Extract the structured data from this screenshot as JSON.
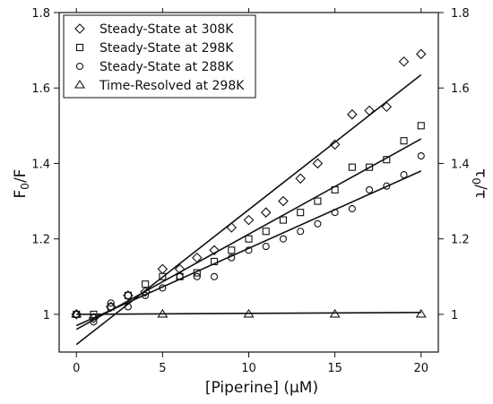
{
  "chart_data": {
    "type": "scatter",
    "xlabel": "[Piperine] (μM)",
    "ylabel": "F0/F",
    "y2label": "τ0/τ",
    "xlim": [
      -1,
      21
    ],
    "ylim": [
      0.9,
      1.8
    ],
    "y2lim": [
      0.9,
      1.8
    ],
    "x_ticks": [
      0,
      5,
      10,
      15,
      20
    ],
    "y_ticks": [
      1,
      1.2,
      1.4,
      1.6,
      1.8
    ],
    "y2_ticks": [
      1,
      1.2,
      1.4,
      1.6,
      1.8
    ],
    "legend_position": "top-left",
    "grid": false,
    "series": [
      {
        "name": "Steady-State at 308K",
        "marker": "diamond",
        "x": [
          0,
          1,
          2,
          3,
          4,
          5,
          6,
          7,
          8,
          9,
          10,
          11,
          12,
          13,
          14,
          15,
          16,
          17,
          18,
          19,
          20
        ],
        "y": [
          1.0,
          0.99,
          1.02,
          1.05,
          1.06,
          1.12,
          1.12,
          1.15,
          1.17,
          1.23,
          1.25,
          1.27,
          1.3,
          1.36,
          1.4,
          1.45,
          1.53,
          1.54,
          1.55,
          1.67,
          1.69
        ],
        "fit": [
          0.92,
          1.635
        ]
      },
      {
        "name": "Steady-State at 298K",
        "marker": "square",
        "x": [
          0,
          1,
          2,
          3,
          4,
          5,
          6,
          7,
          8,
          9,
          10,
          11,
          12,
          13,
          14,
          15,
          16,
          17,
          18,
          19,
          20
        ],
        "y": [
          1.0,
          1.0,
          1.02,
          1.05,
          1.08,
          1.1,
          1.1,
          1.11,
          1.14,
          1.17,
          1.2,
          1.22,
          1.25,
          1.27,
          1.3,
          1.33,
          1.39,
          1.39,
          1.41,
          1.46,
          1.5
        ],
        "fit": [
          0.96,
          1.465
        ]
      },
      {
        "name": "Steady-State at 288K",
        "marker": "circle",
        "x": [
          0,
          1,
          2,
          3,
          4,
          5,
          6,
          7,
          8,
          9,
          10,
          11,
          12,
          13,
          14,
          15,
          16,
          17,
          18,
          19,
          20
        ],
        "y": [
          1.0,
          0.98,
          1.03,
          1.02,
          1.05,
          1.07,
          1.1,
          1.1,
          1.1,
          1.15,
          1.17,
          1.18,
          1.2,
          1.22,
          1.24,
          1.27,
          1.28,
          1.33,
          1.34,
          1.37,
          1.42
        ],
        "fit": [
          0.97,
          1.38
        ]
      },
      {
        "name": "Time-Resolved at 298K",
        "marker": "triangle",
        "x": [
          0,
          5,
          10,
          15,
          20
        ],
        "y": [
          1.0,
          1.0,
          1.0,
          1.0,
          1.0
        ],
        "fit": [
          1.0,
          1.005
        ]
      }
    ]
  }
}
